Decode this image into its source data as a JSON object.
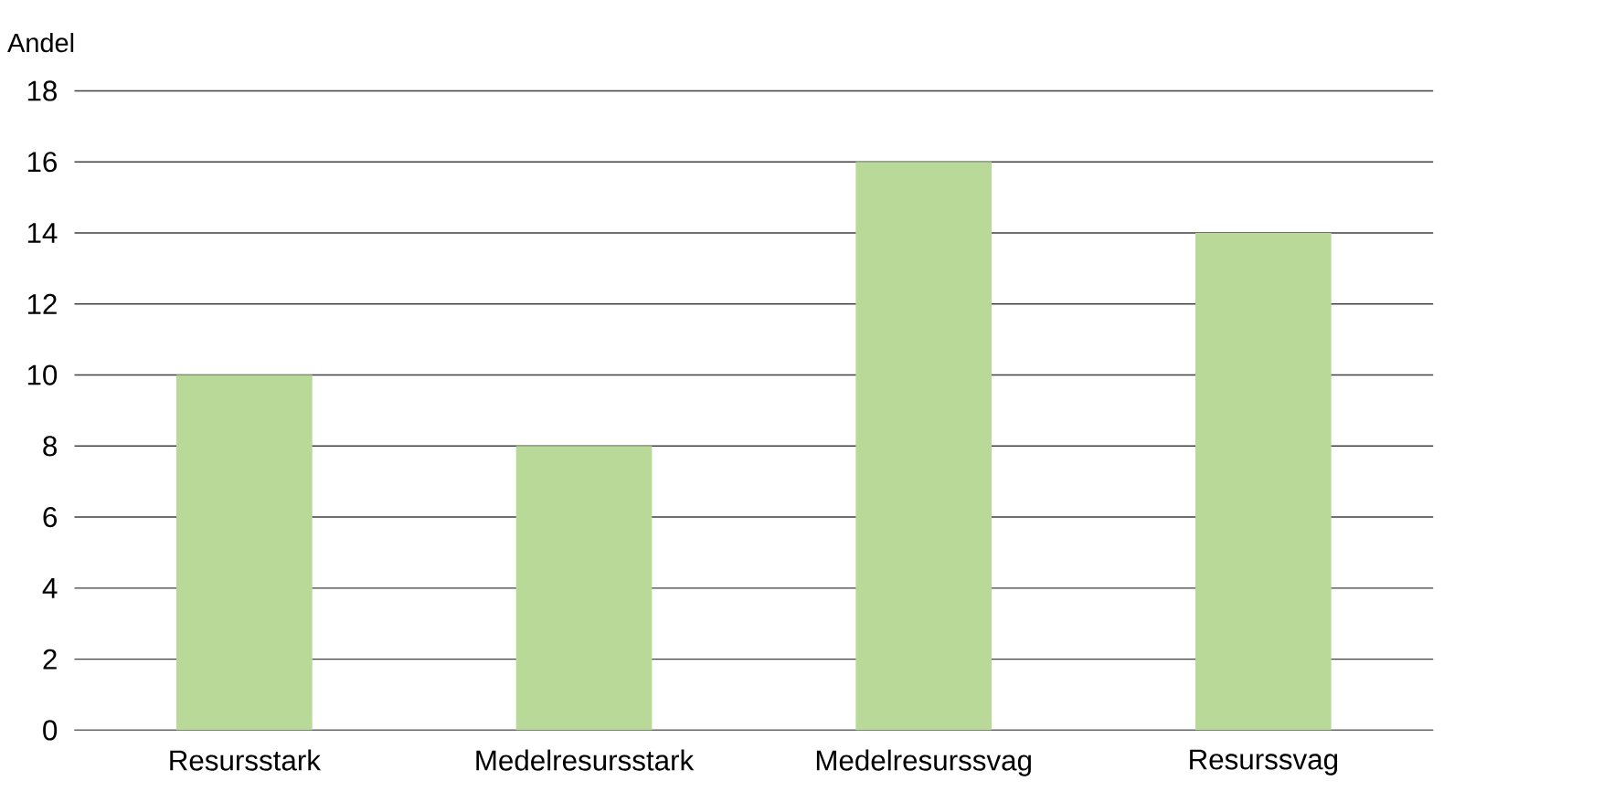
{
  "chart_data": {
    "type": "bar",
    "ylabel": "Andel",
    "categories": [
      "Resursstark",
      "Medelresursstark",
      "Medelresurssvag",
      "Resurssvag"
    ],
    "values": [
      10,
      8,
      16,
      14
    ],
    "color": "#b8d998",
    "ylim": [
      0,
      18
    ],
    "yticks": [
      0,
      2,
      4,
      6,
      8,
      10,
      12,
      14,
      16,
      18
    ],
    "grid": "y"
  }
}
